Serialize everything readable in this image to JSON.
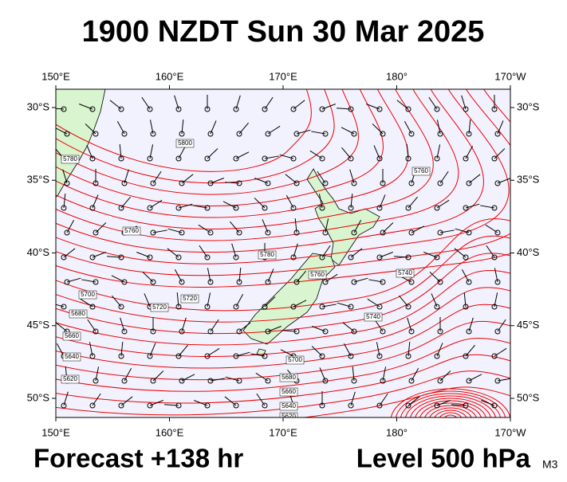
{
  "header": {
    "title": "1900 NZDT Sun 30 Mar 2025"
  },
  "map": {
    "lon_ticks": [
      {
        "value": 150,
        "label": "150°E"
      },
      {
        "value": 160,
        "label": "160°E"
      },
      {
        "value": 170,
        "label": "170°E"
      },
      {
        "value": 180,
        "label": "180°"
      },
      {
        "value": 190,
        "label": "170°W"
      }
    ],
    "lat_ticks": [
      {
        "value": -30,
        "label": "30°S"
      },
      {
        "value": -35,
        "label": "35°S"
      },
      {
        "value": -40,
        "label": "40°S"
      },
      {
        "value": -45,
        "label": "45°S"
      },
      {
        "value": -50,
        "label": "50°S"
      }
    ],
    "contour_labels": [
      5800,
      5780,
      5760,
      5780,
      5760,
      5740,
      5720,
      5700,
      5680,
      5660,
      5640,
      5620,
      5700,
      5680,
      5660,
      5640,
      5620,
      5760,
      5740,
      5720
    ]
  },
  "footer": {
    "forecast": "Forecast +138 hr",
    "level": "Level 500 hPa",
    "model": "M3"
  }
}
